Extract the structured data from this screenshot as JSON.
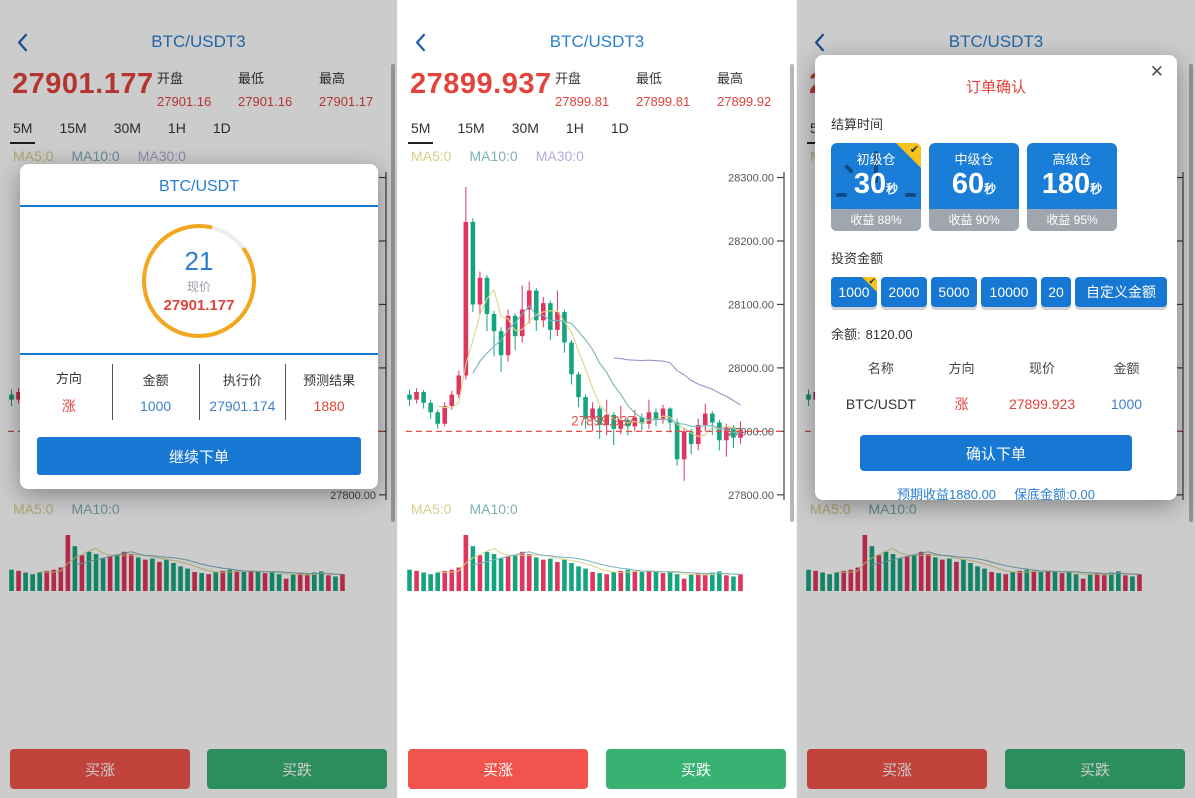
{
  "market": {
    "title": "BTC/USDT3",
    "tabs": [
      "5M",
      "15M",
      "30M",
      "1H",
      "1D"
    ],
    "ma_labels": [
      "MA5:0",
      "MA10:0",
      "MA30:0"
    ],
    "open_label": "开盘",
    "low_label": "最低",
    "high_label": "最高",
    "buy_up": "买涨",
    "buy_down": "买跌"
  },
  "panels": [
    {
      "price": "27901.177",
      "open": "27901.16",
      "low": "27901.16",
      "high": "27901.17"
    },
    {
      "price": "27899.937",
      "open": "27899.81",
      "low": "27899.81",
      "high": "27899.92"
    },
    {
      "price": "27899.937",
      "open": "27899.81",
      "low": "27899.81",
      "high": "27899.92"
    }
  ],
  "order_modal": {
    "title": "BTC/USDT",
    "countdown": "21",
    "price_label": "现价",
    "current_price": "27901.177",
    "cols": [
      {
        "label": "方向",
        "value": "涨"
      },
      {
        "label": "金额",
        "value": "1000"
      },
      {
        "label": "执行价",
        "value": "27901.174"
      },
      {
        "label": "预测结果",
        "value": "1880"
      }
    ],
    "button": "继续下单"
  },
  "confirm_modal": {
    "title": "订单确认",
    "settle_label": "结算时间",
    "plans": [
      {
        "name": "初级仓",
        "secs": "30",
        "unit": "秒",
        "yield": "收益 88%",
        "selected": true
      },
      {
        "name": "中级仓",
        "secs": "60",
        "unit": "秒",
        "yield": "收益 90%",
        "selected": false
      },
      {
        "name": "高级仓",
        "secs": "180",
        "unit": "秒",
        "yield": "收益 95%",
        "selected": false
      }
    ],
    "invest_label": "投资金额",
    "amounts": [
      "1000",
      "2000",
      "5000",
      "10000",
      "20"
    ],
    "custom_label": "自定义金额",
    "selected_amount": "1000",
    "balance_label": "余额:",
    "balance": "8120.00",
    "table": {
      "headers": [
        "名称",
        "方向",
        "现价",
        "金额"
      ],
      "row": [
        "BTC/USDT",
        "涨",
        "27899.923",
        "1000"
      ]
    },
    "confirm_button": "确认下单",
    "expected": "预期收益1880.00",
    "guarantee": "保底金额:0.00"
  },
  "colors": {
    "title_blue": "#2b7fd0",
    "accent_blue": "#1678d2",
    "red": "#e2433c",
    "candle_up": "#e0355c",
    "candle_down": "#14a57e",
    "ma5": "#ddd28b",
    "ma10": "#79b2bd",
    "ma30": "#9a95cb",
    "buy_up": "#f0544c",
    "buy_down": "#38b273",
    "selected_corner": "#f7c31e",
    "countdown_ring": "#f2a71f"
  },
  "chart_data": {
    "type": "candlestick",
    "ylim": [
      27795,
      28315
    ],
    "axis_ticks": [
      "28300.00",
      "28200.00",
      "28100.00",
      "28000.00",
      "27900.00",
      "27800.00"
    ],
    "current_price": 27899.937,
    "current_price_label": "27899.937",
    "ma_periods": [
      5,
      10,
      30
    ],
    "volume_ma_periods": [
      5,
      10
    ],
    "ohlc": [
      [
        27958,
        27950,
        27940,
        27966
      ],
      [
        27950,
        27962,
        27944,
        27968
      ],
      [
        27962,
        27945,
        27936,
        27965
      ],
      [
        27945,
        27930,
        27920,
        27950
      ],
      [
        27930,
        27912,
        27904,
        27934
      ],
      [
        27912,
        27940,
        27908,
        27946
      ],
      [
        27940,
        27958,
        27934,
        27964
      ],
      [
        27958,
        27988,
        27952,
        27996
      ],
      [
        27988,
        28230,
        27982,
        28285
      ],
      [
        28230,
        28100,
        28088,
        28236
      ],
      [
        28100,
        28142,
        28084,
        28152
      ],
      [
        28142,
        28085,
        28058,
        28146
      ],
      [
        28085,
        28058,
        28018,
        28090
      ],
      [
        28058,
        28020,
        27994,
        28064
      ],
      [
        28020,
        28082,
        28010,
        28092
      ],
      [
        28082,
        28050,
        28028,
        28086
      ],
      [
        28050,
        28092,
        28040,
        28130
      ],
      [
        28092,
        28122,
        28070,
        28136
      ],
      [
        28122,
        28075,
        28058,
        28126
      ],
      [
        28075,
        28102,
        28064,
        28112
      ],
      [
        28102,
        28060,
        28044,
        28106
      ],
      [
        28060,
        28088,
        28050,
        28122
      ],
      [
        28088,
        28040,
        28024,
        28092
      ],
      [
        28040,
        27990,
        27974,
        28044
      ],
      [
        27990,
        27954,
        27938,
        27994
      ],
      [
        27954,
        27920,
        27904,
        27958
      ],
      [
        27920,
        27936,
        27900,
        27946
      ],
      [
        27936,
        27910,
        27888,
        27940
      ],
      [
        27910,
        27926,
        27894,
        27950
      ],
      [
        27926,
        27904,
        27878,
        27930
      ],
      [
        27904,
        27918,
        27896,
        27940
      ],
      [
        27918,
        27908,
        27894,
        27922
      ],
      [
        27908,
        27922,
        27900,
        27934
      ],
      [
        27922,
        27912,
        27902,
        27928
      ],
      [
        27912,
        27930,
        27904,
        27950
      ],
      [
        27930,
        27920,
        27908,
        27936
      ],
      [
        27920,
        27936,
        27912,
        27942
      ],
      [
        27936,
        27914,
        27898,
        27938
      ],
      [
        27914,
        27856,
        27846,
        27920
      ],
      [
        27856,
        27900,
        27822,
        27906
      ],
      [
        27900,
        27880,
        27864,
        27904
      ],
      [
        27880,
        27910,
        27870,
        27920
      ],
      [
        27910,
        27928,
        27900,
        27944
      ],
      [
        27928,
        27914,
        27894,
        27932
      ],
      [
        27914,
        27886,
        27870,
        27918
      ],
      [
        27886,
        27906,
        27860,
        27912
      ],
      [
        27906,
        27890,
        27874,
        27910
      ],
      [
        27890,
        27902,
        27880,
        27916
      ]
    ],
    "volumes": [
      38,
      36,
      33,
      30,
      33,
      36,
      38,
      42,
      100,
      80,
      64,
      70,
      66,
      58,
      62,
      64,
      70,
      66,
      60,
      56,
      58,
      52,
      56,
      50,
      44,
      40,
      34,
      32,
      30,
      34,
      36,
      38,
      36,
      34,
      36,
      34,
      32,
      34,
      30,
      22,
      30,
      32,
      30,
      33,
      35,
      28,
      26,
      30
    ]
  }
}
